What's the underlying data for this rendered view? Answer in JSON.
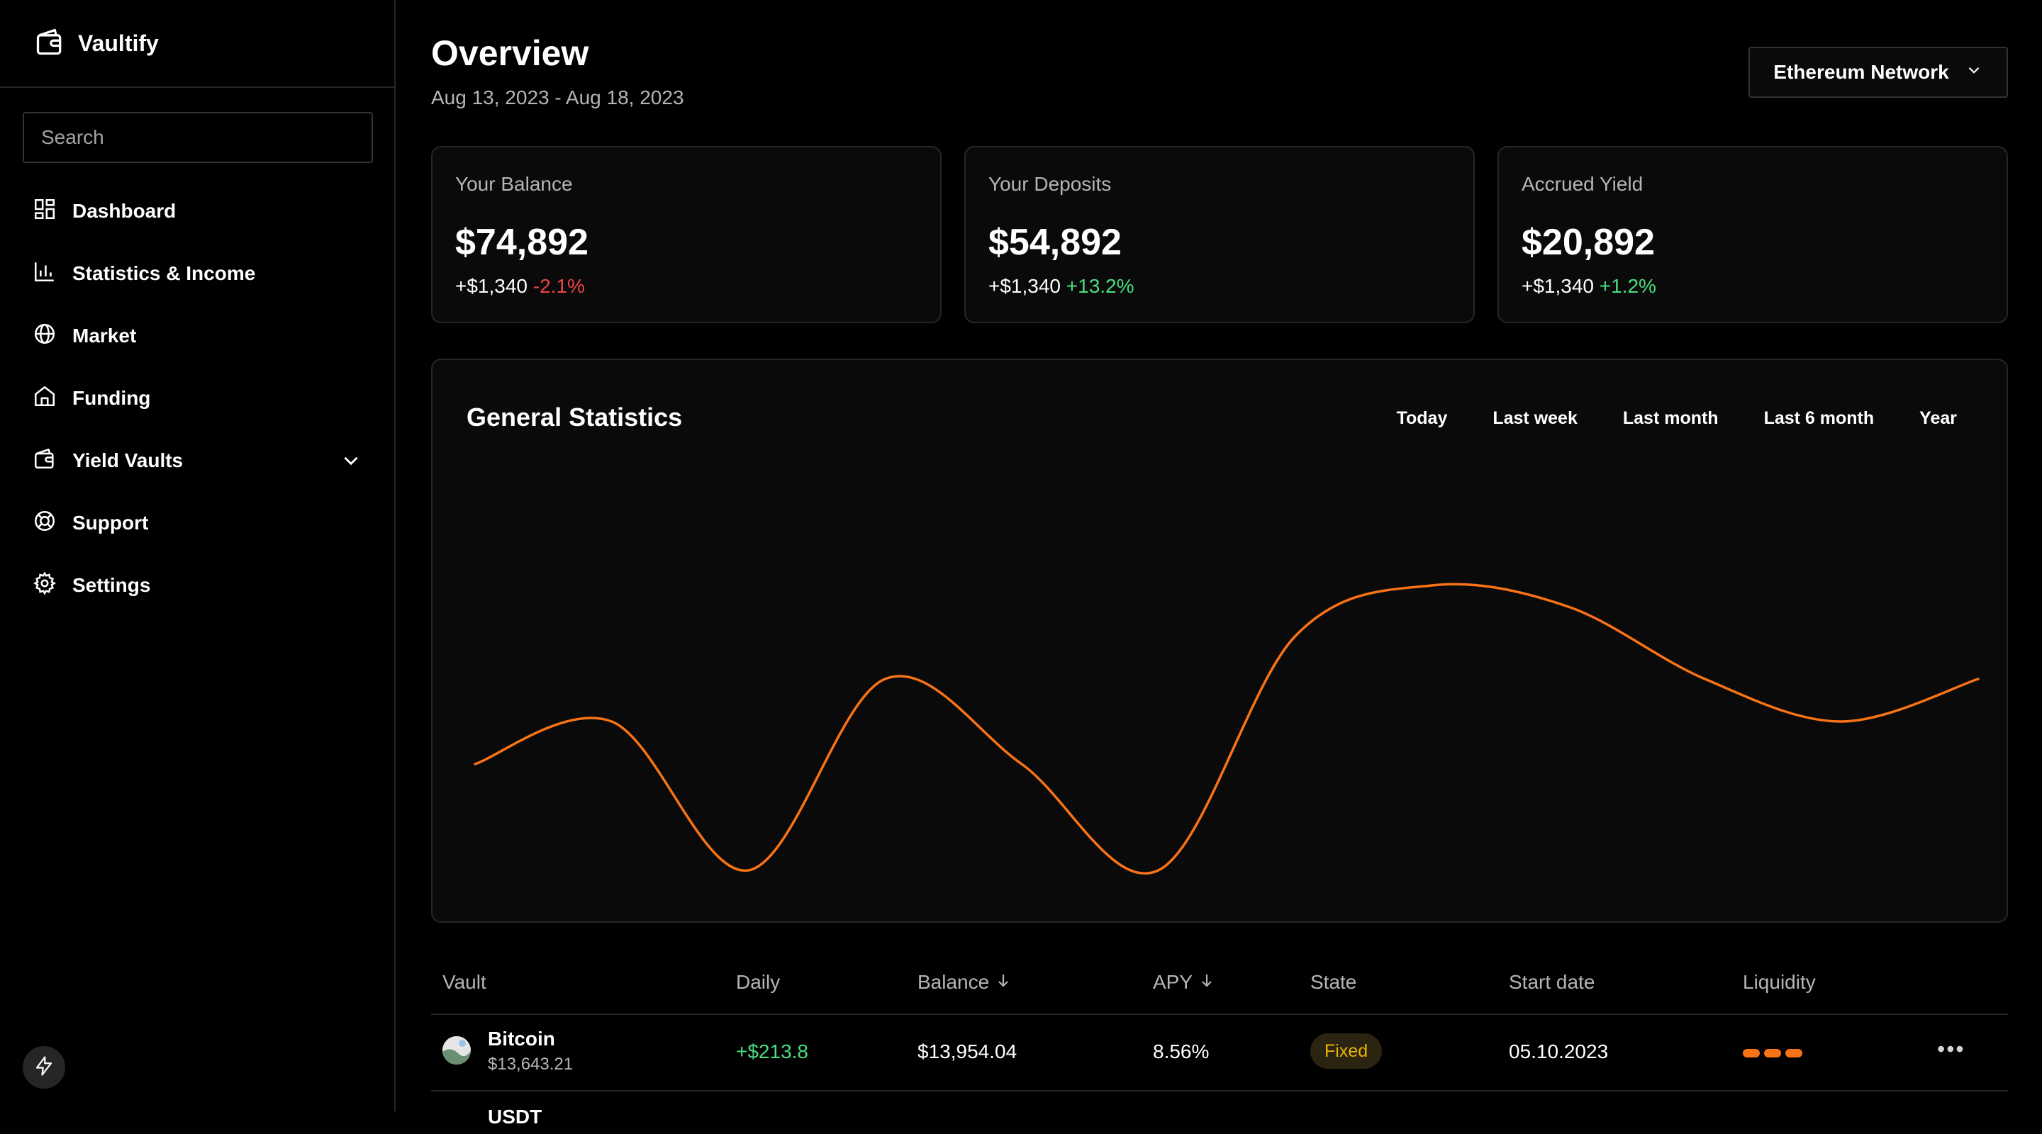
{
  "brand": {
    "name": "Vaultify",
    "icon": "wallet-icon"
  },
  "search": {
    "placeholder": "Search",
    "value": ""
  },
  "nav": [
    {
      "label": "Dashboard",
      "icon": "dashboard-icon"
    },
    {
      "label": "Statistics & Income",
      "icon": "bar-chart-icon"
    },
    {
      "label": "Market",
      "icon": "globe-icon"
    },
    {
      "label": "Funding",
      "icon": "home-icon"
    },
    {
      "label": "Yield Vaults",
      "icon": "wallet-icon",
      "expandable": true
    },
    {
      "label": "Support",
      "icon": "lifebuoy-icon"
    },
    {
      "label": "Settings",
      "icon": "gear-icon"
    }
  ],
  "header": {
    "title": "Overview",
    "date_range": "Aug 13, 2023 - Aug 18, 2023",
    "network": "Ethereum Network"
  },
  "cards": [
    {
      "label": "Your Balance",
      "value": "$74,892",
      "change_abs": "+$1,340",
      "change_pct": "-2.1%",
      "trend": "negative"
    },
    {
      "label": "Your Deposits",
      "value": "$54,892",
      "change_abs": "+$1,340",
      "change_pct": "+13.2%",
      "trend": "positive"
    },
    {
      "label": "Accrued Yield",
      "value": "$20,892",
      "change_abs": "+$1,340",
      "change_pct": "+1.2%",
      "trend": "positive"
    }
  ],
  "statistics": {
    "title": "General Statistics",
    "ranges": [
      "Today",
      "Last week",
      "Last month",
      "Last 6 month",
      "Year"
    ]
  },
  "chart_data": {
    "type": "line",
    "title": "",
    "xlabel": "",
    "ylabel": "",
    "grid": false,
    "x": [
      0,
      1,
      2,
      3,
      4,
      5,
      6,
      7,
      8,
      9,
      10,
      11
    ],
    "series": [
      {
        "values": [
          35,
          45,
          10,
          55,
          35,
          10,
          65,
          77,
          72,
          55,
          45,
          55
        ]
      }
    ],
    "ylim": [
      0,
      100
    ],
    "color": "#f97316"
  },
  "table": {
    "columns": [
      {
        "label": "Vault",
        "sort": ""
      },
      {
        "label": "Daily",
        "sort": ""
      },
      {
        "label": "Balance",
        "sort": "desc"
      },
      {
        "label": "APY",
        "sort": "desc"
      },
      {
        "label": "State",
        "sort": ""
      },
      {
        "label": "Start date",
        "sort": ""
      },
      {
        "label": "Liquidity",
        "sort": ""
      }
    ],
    "rows": [
      {
        "name": "Bitcoin",
        "sub": "$13,643.21",
        "daily": "+$213.8",
        "balance": "$13,954.04",
        "apy": "8.56%",
        "state": "Fixed",
        "start_date": "05.10.2023",
        "liquidity_level": 3
      }
    ],
    "next_row_partial": "USDT"
  }
}
